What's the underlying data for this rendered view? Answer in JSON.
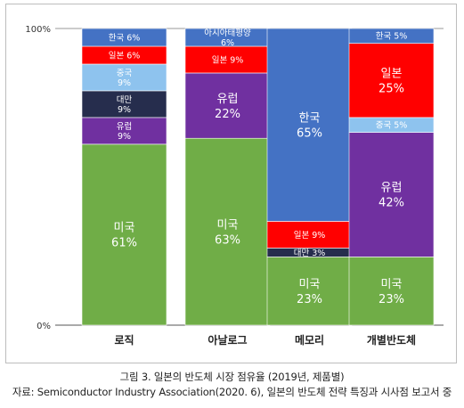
{
  "chart_data": {
    "type": "bar",
    "stacked": true,
    "percent": true,
    "categories": [
      "로직",
      "아날로그",
      "메모리",
      "개별반도체"
    ],
    "y_ticks": [
      "0%",
      "100%"
    ],
    "ylim": [
      0,
      100
    ],
    "grid": false,
    "legend": "none",
    "series": [
      {
        "name": "미국",
        "color": "#70ad47",
        "values": [
          61,
          63,
          23,
          23
        ],
        "labels": [
          "미국\n61%",
          "미국\n63%",
          "미국\n23%",
          "미국\n23%"
        ]
      },
      {
        "name": "유럽",
        "color": "#7030a0",
        "values": [
          9,
          22,
          0,
          42
        ],
        "labels": [
          "유럽\n9%",
          "유럽\n22%",
          "",
          "유럽\n42%"
        ]
      },
      {
        "name": "대만",
        "color": "#262d4d",
        "values": [
          9,
          0,
          3,
          0
        ],
        "labels": [
          "대만\n9%",
          "",
          "대만 3%",
          ""
        ]
      },
      {
        "name": "중국",
        "color": "#8ec3ee",
        "values": [
          9,
          0,
          0,
          5
        ],
        "labels": [
          "중국\n9%",
          "",
          "",
          "중국 5%"
        ]
      },
      {
        "name": "일본",
        "color": "#ff0000",
        "values": [
          6,
          9,
          9,
          25
        ],
        "labels": [
          "일본 6%",
          "일본 9%",
          "일본 9%",
          "일본\n25%"
        ]
      },
      {
        "name": "한국",
        "color": "#4472c4",
        "values": [
          6,
          0,
          65,
          5
        ],
        "labels": [
          "한국 6%",
          "",
          "한국\n65%",
          "한국 5%"
        ]
      },
      {
        "name": "아시아태평양",
        "color": "#4472c4",
        "values": [
          0,
          6,
          0,
          0
        ],
        "labels": [
          "",
          "아시아태평양\n6%",
          "",
          ""
        ]
      }
    ]
  },
  "caption": {
    "line1": "그림 3. 일본의 반도체 시장 점유율 (2019년,  제품별)",
    "line2": "자료: Semiconductor Industry Association(2020. 6), 일본의 반도체 전략 특징과 시사점 보고서 중"
  }
}
